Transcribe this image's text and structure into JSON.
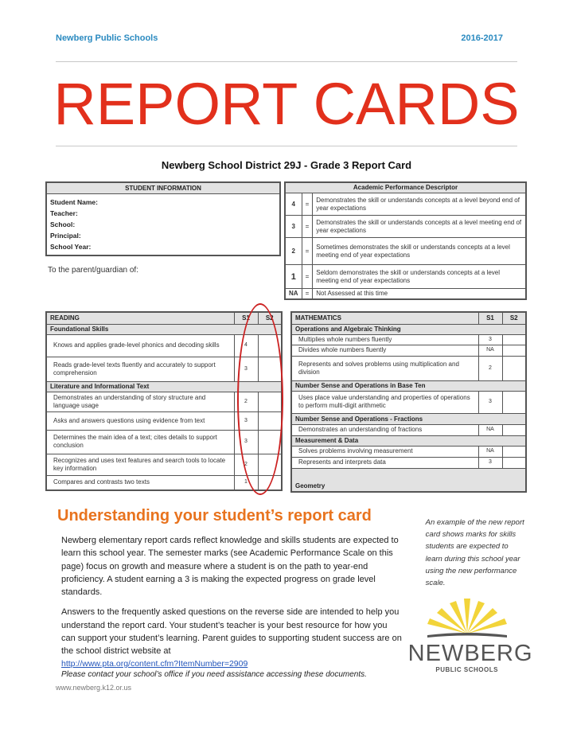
{
  "header": {
    "org": "Newberg Public Schools",
    "year": "2016-2017",
    "title": "REPORT CARDS"
  },
  "subtitle": "Newberg School District 29J - Grade 3 Report Card",
  "student_info": {
    "heading": "STUDENT INFORMATION",
    "fields": [
      "Student Name:",
      "Teacher:",
      "School:",
      "Principal:",
      "School Year:"
    ],
    "parent_line": "To the parent/guardian of:"
  },
  "apd": {
    "heading": "Academic Performance Descriptor",
    "rows": [
      {
        "mark": "4",
        "eq": "=",
        "text": "Demonstrates the skill or understands concepts at a level beyond end of year expectations"
      },
      {
        "mark": "3",
        "eq": "=",
        "text": "Demonstrates the skill or understands concepts at a level meeting end of year expectations"
      },
      {
        "mark": "2",
        "eq": "=",
        "text": "Sometimes demonstrates the skill or understands concepts at a level meeting end of year expectations"
      },
      {
        "mark": "1",
        "eq": "=",
        "text": "Seldom demonstrates the skill or understands concepts at a level meeting end of year expectations"
      },
      {
        "mark": "NA",
        "eq": "=",
        "text": "Not Assessed at this time"
      }
    ]
  },
  "reading": {
    "heading": "READING",
    "s1": "S1",
    "s2": "S2",
    "rows": [
      {
        "section": "Foundational Skills"
      },
      {
        "text": "Knows and applies grade-level phonics and decoding skills",
        "s1": "4",
        "s2": ""
      },
      {
        "text": "Reads grade-level texts fluently and accurately to support comprehension",
        "s1": "3",
        "s2": ""
      },
      {
        "section": "Literature and Informational Text"
      },
      {
        "text": "Demonstrates an understanding of story structure and language usage",
        "s1": "2",
        "s2": ""
      },
      {
        "text": "Asks and answers questions using evidence from text",
        "s1": "3",
        "s2": ""
      },
      {
        "text": "Determines the main idea of a text; cites details to support conclusion",
        "s1": "3",
        "s2": ""
      },
      {
        "text": "Recognizes and uses text features and search tools to locate key information",
        "s1": "2",
        "s2": ""
      },
      {
        "text": "Compares and contrasts two texts",
        "s1": "1",
        "s2": ""
      }
    ]
  },
  "math": {
    "heading": "MATHEMATICS",
    "s1": "S1",
    "s2": "S2",
    "rows": [
      {
        "section": "Operations and Algebraic Thinking"
      },
      {
        "text": "Multiplies whole numbers fluently",
        "s1": "3",
        "s2": ""
      },
      {
        "text": "Divides whole numbers fluently",
        "s1": "NA",
        "s2": ""
      },
      {
        "text": "Represents and solves problems using multiplication and division",
        "s1": "2",
        "s2": ""
      },
      {
        "section": "Number Sense and Operations in Base Ten"
      },
      {
        "text": "Uses place value understanding and properties of operations to perform multi-digit arithmetic",
        "s1": "3",
        "s2": ""
      },
      {
        "section": "Number Sense and Operations - Fractions"
      },
      {
        "text": "Demonstrates an understanding of fractions",
        "s1": "NA",
        "s2": ""
      },
      {
        "section": "Measurement & Data"
      },
      {
        "text": "Solves problems involving measurement",
        "s1": "NA",
        "s2": ""
      },
      {
        "text": "Represents and interprets data",
        "s1": "3",
        "s2": ""
      },
      {
        "section": "Geometry"
      }
    ]
  },
  "explainer": {
    "heading": "Understanding your student’s report card",
    "p1": "Newberg elementary report cards reflect knowledge and skills students are expected to learn this school year. The semester marks (see Academic Performance Scale on this page) focus on growth and measure where a student is on the path to year-end proficiency. A student earning a 3 is making the expected progress on grade level standards.",
    "p2": "Answers to the frequently asked questions on the reverse side are intended to help you understand the report card. Your student’s teacher is your best resource for how you can support your student’s learning. Parent guides to supporting student success are on the school district website at",
    "link": "http://www.pta.org/content.cfm?ItemNumber=2909",
    "note": "Please contact your school’s office if you need assistance accessing these documents.",
    "footer": "www.newberg.k12.or.us",
    "side": "An example of the new report card shows marks for skills students are expected to learn during this school year using the new performance scale."
  },
  "logo": {
    "name": "NEWBERG",
    "sub": "PUBLIC SCHOOLS"
  },
  "colors": {
    "title": "#e2301c",
    "header": "#2a8ac0",
    "heading": "#e8731e",
    "circle": "#c22222",
    "logo_rays": "#f2d43a"
  }
}
